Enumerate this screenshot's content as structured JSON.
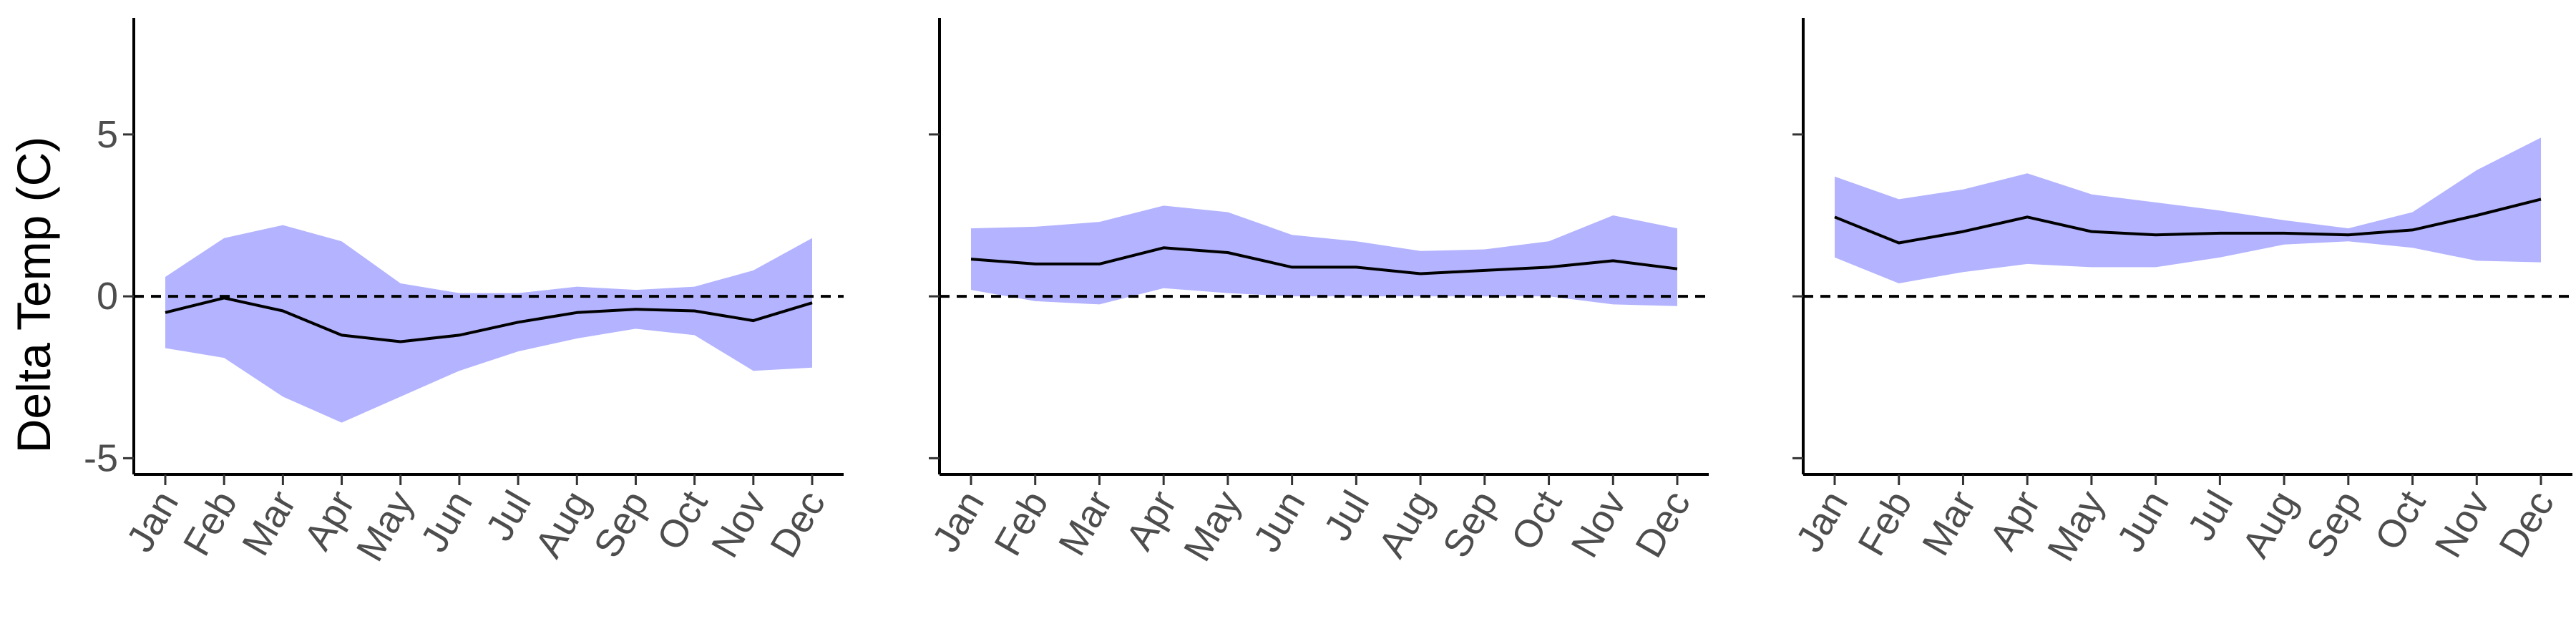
{
  "chart_data": {
    "type": "line",
    "ylabel": "Delta Temp (C)",
    "months": [
      "Jan",
      "Feb",
      "Mar",
      "Apr",
      "May",
      "Jun",
      "Jul",
      "Aug",
      "Sep",
      "Oct",
      "Nov",
      "Dec"
    ],
    "y_ticks": [
      5,
      0,
      -5
    ],
    "ylim": [
      -5.5,
      8.6
    ],
    "reference_line": {
      "y": 0,
      "style": "dashed"
    },
    "colors": {
      "ribbon": "#b3b3ff",
      "line": "#000000",
      "axis": "#000000",
      "tick_text": "#4d4d4d"
    },
    "panels": [
      {
        "series": [
          {
            "type": "ribbon",
            "lower": [
              -1.6,
              -1.9,
              -3.1,
              -3.9,
              -3.1,
              -2.3,
              -1.7,
              -1.3,
              -1.0,
              -1.2,
              -2.3,
              -2.2
            ],
            "upper": [
              0.6,
              1.8,
              2.2,
              1.7,
              0.4,
              0.1,
              0.1,
              0.3,
              0.2,
              0.3,
              0.8,
              1.8
            ]
          },
          {
            "type": "line",
            "values": [
              -0.5,
              -0.05,
              -0.45,
              -1.2,
              -1.4,
              -1.2,
              -0.8,
              -0.5,
              -0.4,
              -0.45,
              -0.75,
              -0.2
            ]
          }
        ]
      },
      {
        "series": [
          {
            "type": "ribbon",
            "lower": [
              0.2,
              -0.15,
              -0.25,
              0.25,
              0.1,
              0.0,
              0.0,
              0.0,
              0.0,
              0.0,
              -0.25,
              -0.3
            ],
            "upper": [
              2.1,
              2.15,
              2.3,
              2.8,
              2.6,
              1.9,
              1.7,
              1.4,
              1.45,
              1.7,
              2.5,
              2.1
            ]
          },
          {
            "type": "line",
            "values": [
              1.15,
              1.0,
              1.0,
              1.5,
              1.35,
              0.9,
              0.9,
              0.7,
              0.8,
              0.9,
              1.1,
              0.85
            ]
          }
        ]
      },
      {
        "series": [
          {
            "type": "ribbon",
            "lower": [
              1.2,
              0.4,
              0.75,
              1.0,
              0.9,
              0.9,
              1.2,
              1.6,
              1.7,
              1.5,
              1.1,
              1.05
            ],
            "upper": [
              3.7,
              3.0,
              3.3,
              3.8,
              3.15,
              2.9,
              2.65,
              2.35,
              2.1,
              2.6,
              3.9,
              4.9
            ]
          },
          {
            "type": "line",
            "values": [
              2.45,
              1.65,
              2.0,
              2.45,
              2.0,
              1.9,
              1.95,
              1.95,
              1.9,
              2.05,
              2.5,
              3.0
            ]
          }
        ]
      }
    ]
  }
}
